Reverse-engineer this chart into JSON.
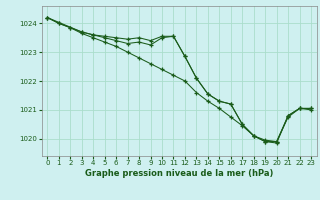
{
  "title": "Graphe pression niveau de la mer (hPa)",
  "bg_color": "#cff0f0",
  "grid_color": "#aaddcc",
  "line_color": "#1a5c1a",
  "xlim": [
    -0.5,
    23.5
  ],
  "ylim": [
    1019.4,
    1024.6
  ],
  "yticks": [
    1020,
    1021,
    1022,
    1023,
    1024
  ],
  "xticks": [
    0,
    1,
    2,
    3,
    4,
    5,
    6,
    7,
    8,
    9,
    10,
    11,
    12,
    13,
    14,
    15,
    16,
    17,
    18,
    19,
    20,
    21,
    22,
    23
  ],
  "series1_x": [
    0,
    1,
    2,
    3,
    4,
    5,
    6,
    7,
    8,
    9,
    10,
    11,
    12,
    13,
    14,
    15,
    16,
    17,
    18,
    19,
    20,
    21,
    22,
    23
  ],
  "series1_y": [
    1024.2,
    1024.0,
    1023.85,
    1023.7,
    1023.6,
    1023.55,
    1023.5,
    1023.45,
    1023.5,
    1023.4,
    1023.55,
    1023.55,
    1022.85,
    1022.1,
    1021.55,
    1021.3,
    1021.2,
    1020.5,
    1020.1,
    1019.95,
    1019.9,
    1020.75,
    1021.05,
    1021.0
  ],
  "series2_x": [
    0,
    1,
    2,
    3,
    4,
    5,
    6,
    7,
    8,
    9,
    10,
    11,
    12,
    13,
    14,
    15,
    16,
    17,
    18,
    19,
    20,
    21,
    22,
    23
  ],
  "series2_y": [
    1024.2,
    1024.0,
    1023.85,
    1023.65,
    1023.5,
    1023.35,
    1023.2,
    1023.0,
    1022.8,
    1022.6,
    1022.4,
    1022.2,
    1022.0,
    1021.6,
    1021.3,
    1021.05,
    1020.75,
    1020.45,
    1020.1,
    1019.9,
    1019.9,
    1020.8,
    1021.05,
    1021.05
  ],
  "series3_x": [
    0,
    3,
    4,
    5,
    6,
    7,
    8,
    9,
    10,
    11,
    12,
    13,
    14,
    15,
    16,
    17,
    18,
    19,
    20,
    21,
    22,
    23
  ],
  "series3_y": [
    1024.2,
    1023.7,
    1023.6,
    1023.5,
    1023.4,
    1023.3,
    1023.35,
    1023.25,
    1023.5,
    1023.55,
    1022.85,
    1022.1,
    1021.55,
    1021.3,
    1021.2,
    1020.5,
    1020.1,
    1019.9,
    1019.85,
    1020.8,
    1021.05,
    1021.05
  ]
}
